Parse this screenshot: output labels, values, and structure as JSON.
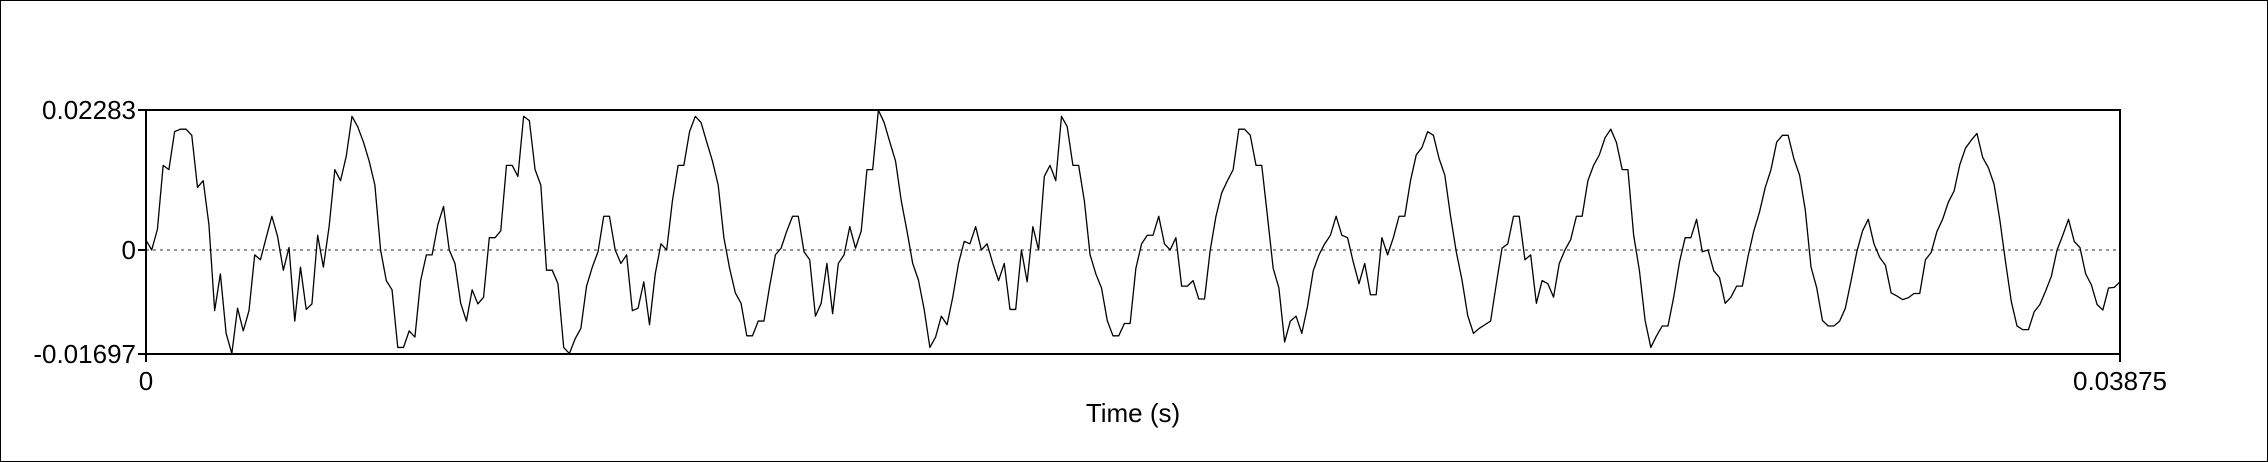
{
  "chart_data": {
    "type": "line",
    "xlabel": "Time (s)",
    "ylabel": "",
    "xlim": [
      0,
      0.03875
    ],
    "ylim": [
      -0.01697,
      0.02283
    ],
    "x_ticks": [
      "0",
      "0.03875"
    ],
    "y_ticks": [
      "0.02283",
      "0",
      "-0.01697"
    ],
    "zero_line": "dotted",
    "grid": false,
    "line_color": "#000000",
    "series": [
      {
        "x_start": 0,
        "x_step": 0.00012109,
        "values": [
          0.0016,
          0.0,
          0.0034,
          0.0138,
          0.0131,
          0.0193,
          0.0197,
          0.0197,
          0.0187,
          0.0102,
          0.0113,
          0.0041,
          -0.0099,
          -0.0039,
          -0.0136,
          -0.0169,
          -0.0095,
          -0.0132,
          -0.0099,
          -0.0008,
          -0.0016,
          0.002,
          0.0055,
          0.0022,
          -0.0033,
          0.0004,
          -0.0116,
          -0.0028,
          -0.0097,
          -0.0088,
          0.0024,
          -0.0028,
          0.0038,
          0.0131,
          0.0113,
          0.0153,
          0.0218,
          0.0201,
          0.0176,
          0.0145,
          0.0106,
          0.0,
          -0.005,
          -0.0065,
          -0.0159,
          -0.0159,
          -0.0132,
          -0.0142,
          -0.005,
          -0.0008,
          -0.0008,
          0.0041,
          0.0071,
          0.0,
          -0.0022,
          -0.0087,
          -0.0116,
          -0.0065,
          -0.0088,
          -0.0077,
          0.002,
          0.002,
          0.0031,
          0.0138,
          0.0138,
          0.012,
          0.0218,
          0.0211,
          0.0131,
          0.0106,
          -0.0033,
          -0.0033,
          -0.0055,
          -0.0159,
          -0.0169,
          -0.0145,
          -0.0128,
          -0.0059,
          -0.0028,
          -0.0003,
          0.0055,
          0.0055,
          0.0,
          -0.0022,
          -0.0008,
          -0.0099,
          -0.0095,
          -0.0052,
          -0.0122,
          -0.0039,
          0.001,
          0.0,
          0.008,
          0.0138,
          0.0138,
          0.0193,
          0.0218,
          0.0208,
          0.0176,
          0.0145,
          0.0106,
          0.002,
          -0.003,
          -0.007,
          -0.0087,
          -0.014,
          -0.014,
          -0.0116,
          -0.0116,
          -0.0059,
          -0.0008,
          0.0003,
          0.0031,
          0.0055,
          0.0055,
          -0.0003,
          -0.0016,
          -0.0108,
          -0.0087,
          -0.0022,
          -0.0104,
          -0.0022,
          -0.0008,
          0.0038,
          0.0003,
          0.0031,
          0.0131,
          0.0131,
          0.0228,
          0.0208,
          0.0176,
          0.0145,
          0.008,
          0.0031,
          -0.0022,
          -0.0049,
          -0.0097,
          -0.0159,
          -0.0142,
          -0.0108,
          -0.0122,
          -0.0077,
          -0.0022,
          0.0014,
          0.001,
          0.0038,
          0.0,
          0.001,
          -0.0022,
          -0.005,
          -0.0022,
          -0.0097,
          -0.0097,
          0.0,
          -0.0052,
          0.0038,
          0.0,
          0.012,
          0.0138,
          0.0113,
          0.0218,
          0.0201,
          0.0138,
          0.0138,
          0.008,
          -0.0008,
          -0.0039,
          -0.0062,
          -0.0115,
          -0.014,
          -0.014,
          -0.012,
          -0.012,
          -0.003,
          0.001,
          0.0024,
          0.0024,
          0.0055,
          0.001,
          0.0,
          0.002,
          -0.0059,
          -0.0059,
          -0.005,
          -0.008,
          -0.008,
          0.0,
          0.0055,
          0.0093,
          0.0113,
          0.0131,
          0.0197,
          0.0197,
          0.0187,
          0.0138,
          0.0138,
          0.0055,
          -0.003,
          -0.0062,
          -0.015,
          -0.0116,
          -0.0108,
          -0.0136,
          -0.0092,
          -0.0034,
          -0.0008,
          0.001,
          0.0024,
          0.0055,
          0.0024,
          0.002,
          -0.002,
          -0.0055,
          -0.0022,
          -0.0073,
          -0.0073,
          0.002,
          -0.0008,
          0.002,
          0.0055,
          0.0055,
          0.0113,
          0.0155,
          0.0167,
          0.0193,
          0.0187,
          0.0149,
          0.0122,
          0.0055,
          -0.0003,
          -0.0049,
          -0.0107,
          -0.0136,
          -0.0128,
          -0.0122,
          -0.0116,
          -0.0055,
          0.0003,
          0.001,
          0.0055,
          0.0055,
          -0.0016,
          -0.0008,
          -0.0087,
          -0.005,
          -0.0055,
          -0.0077,
          -0.0022,
          0.0,
          0.0017,
          0.0055,
          0.0055,
          0.0113,
          0.0138,
          0.0155,
          0.0183,
          0.0197,
          0.0175,
          0.0131,
          0.0131,
          0.0024,
          -0.0033,
          -0.0115,
          -0.0159,
          -0.014,
          -0.0124,
          -0.0124,
          -0.0077,
          -0.002,
          0.002,
          0.002,
          0.005,
          -0.0003,
          0.0,
          -0.0034,
          -0.0045,
          -0.0087,
          -0.0077,
          -0.0059,
          -0.0059,
          -0.001,
          0.0031,
          0.0062,
          0.0102,
          0.0131,
          0.0176,
          0.0187,
          0.0187,
          0.0149,
          0.0122,
          0.0065,
          -0.0028,
          -0.0062,
          -0.0115,
          -0.0124,
          -0.0124,
          -0.0116,
          -0.0095,
          -0.005,
          -0.0003,
          0.0031,
          0.005,
          0.001,
          -0.0012,
          -0.0025,
          -0.007,
          -0.0075,
          -0.0081,
          -0.0078,
          -0.0071,
          -0.0071,
          -0.0016,
          -0.0004,
          0.003,
          0.005,
          0.0078,
          0.0096,
          0.0139,
          0.0166,
          0.0179,
          0.019,
          0.0151,
          0.0134,
          0.0107,
          0.0049,
          -0.002,
          -0.0084,
          -0.0124,
          -0.013,
          -0.013,
          -0.0101,
          -0.0089,
          -0.0067,
          -0.0043,
          0.0,
          0.0024,
          0.005,
          0.0014,
          0.0004,
          -0.0039,
          -0.0057,
          -0.0089,
          -0.0098,
          -0.0062,
          -0.0061,
          -0.0052
        ]
      }
    ]
  }
}
